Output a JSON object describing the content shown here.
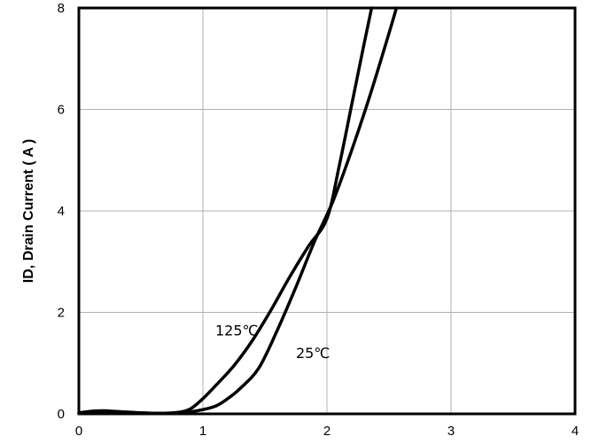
{
  "chart_data": {
    "type": "line",
    "title": "",
    "xlabel": "",
    "ylabel": "ID, Drain Current ( A )",
    "xlim": [
      0,
      4
    ],
    "ylim": [
      0,
      8
    ],
    "x_ticks": [
      "0",
      "1",
      "2",
      "3",
      "4"
    ],
    "y_ticks": [
      "0",
      "2",
      "4",
      "6",
      "8"
    ],
    "grid": true,
    "legend": "none",
    "colors": {
      "line": "#000000",
      "grid": "#b0b0b0",
      "frame": "#000000"
    },
    "series": [
      {
        "name": "125℃",
        "x": [
          0,
          0.1,
          0.2,
          0.35,
          0.5,
          0.65,
          0.8,
          0.9,
          1.0,
          1.1,
          1.25,
          1.4,
          1.55,
          1.7,
          1.85,
          2.0,
          2.1,
          2.2,
          2.3,
          2.36
        ],
        "y": [
          0.02,
          0.05,
          0.06,
          0.04,
          0.02,
          0.01,
          0.03,
          0.1,
          0.3,
          0.55,
          0.95,
          1.45,
          2.05,
          2.7,
          3.3,
          3.85,
          4.9,
          6.1,
          7.3,
          8.0
        ]
      },
      {
        "name": "25℃",
        "x": [
          0,
          0.1,
          0.2,
          0.35,
          0.5,
          0.65,
          0.8,
          0.95,
          1.1,
          1.2,
          1.3,
          1.45,
          1.6,
          1.75,
          1.9,
          2.05,
          2.2,
          2.35,
          2.5,
          2.56
        ],
        "y": [
          0.01,
          0.05,
          0.05,
          0.04,
          0.02,
          0.01,
          0.02,
          0.06,
          0.15,
          0.3,
          0.5,
          0.9,
          1.65,
          2.5,
          3.4,
          4.2,
          5.2,
          6.3,
          7.5,
          8.0
        ]
      }
    ],
    "annotations": [
      {
        "text": "125℃",
        "x": 1.1,
        "y": 1.55
      },
      {
        "text": "25℃",
        "x": 1.75,
        "y": 1.1
      }
    ]
  }
}
